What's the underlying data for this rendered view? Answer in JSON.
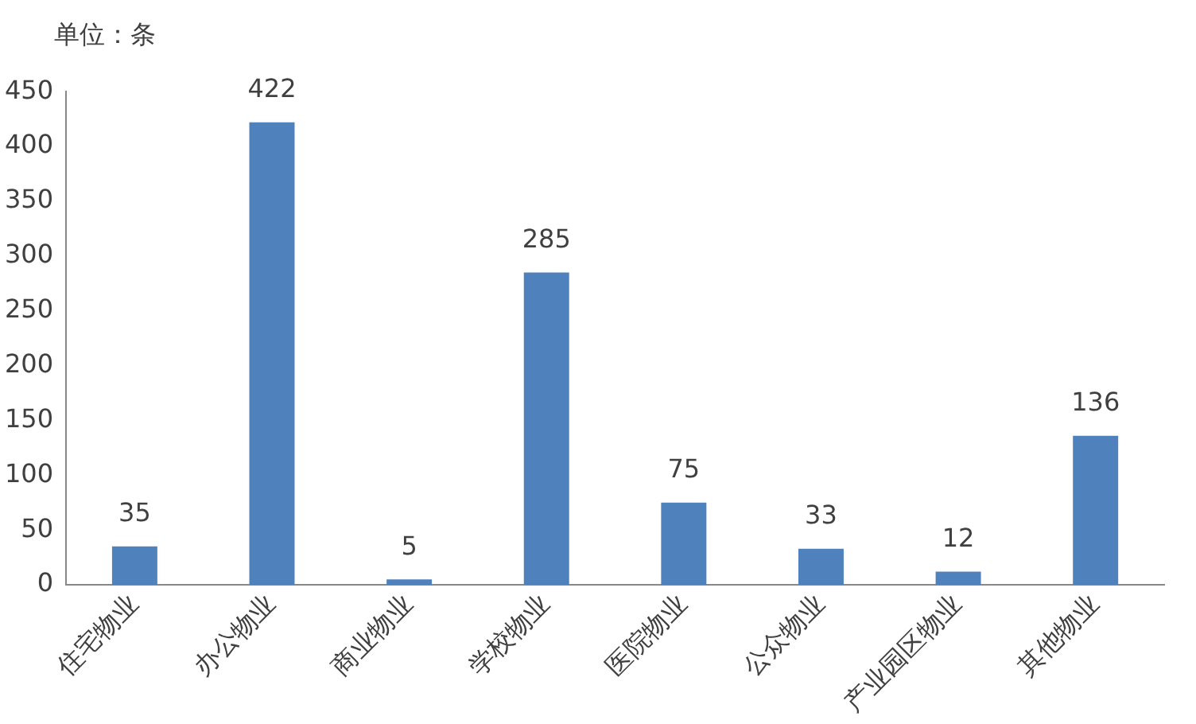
{
  "chart_data": {
    "type": "bar",
    "ylabel": "单位：条",
    "categories": [
      "住宅物业",
      "办公物业",
      "商业物业",
      "学校物业",
      "医院物业",
      "公众物业",
      "产业园区物业",
      "其他物业"
    ],
    "values": [
      35,
      422,
      5,
      285,
      75,
      33,
      12,
      136
    ],
    "color": "#4f81bd",
    "ylim": [
      0,
      450
    ],
    "yticks": [
      0,
      50,
      100,
      150,
      200,
      250,
      300,
      350,
      400,
      450
    ],
    "grid": false,
    "legend": false,
    "data_labels": true
  }
}
